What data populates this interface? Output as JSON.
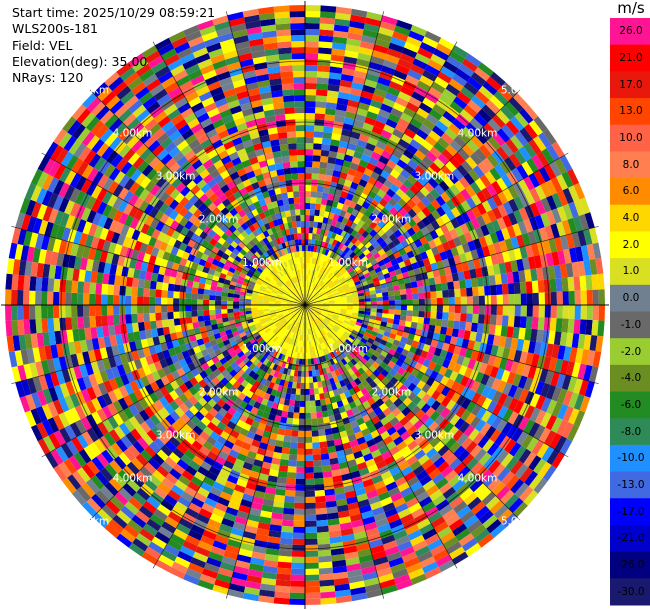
{
  "info": {
    "start_time": "Start time: 2025/10/29 08:59:21",
    "station": "WLS200s-181",
    "field": "Field: VEL",
    "elevation": "Elevation(deg): 35.00",
    "nrays": "NRays: 120"
  },
  "colorbar": {
    "unit": "m/s",
    "ticks": [
      "26.0",
      "21.0",
      "17.0",
      "13.0",
      "10.0",
      "8.0",
      "6.0",
      "4.0",
      "2.0",
      "1.0",
      "0.0",
      "-1.0",
      "-2.0",
      "-4.0",
      "-6.0",
      "-8.0",
      "-10.0",
      "-13.0",
      "-17.0",
      "-21.0",
      "-26.0",
      "-30.0"
    ],
    "colors": [
      "#ff1493",
      "#ff0000",
      "#e8190c",
      "#ff4500",
      "#ff6347",
      "#ff7f50",
      "#ff8c00",
      "#ffd700",
      "#ffff00",
      "#d9e021",
      "#708090",
      "#696969",
      "#9acd32",
      "#6b8e23",
      "#228b22",
      "#2e8b57",
      "#1e90ff",
      "#4169e1",
      "#0000ff",
      "#0000cd",
      "#000080",
      "#191970"
    ]
  },
  "range_labels": [
    "1.00km",
    "2.00km",
    "3.00km",
    "4.00km",
    "5.00km"
  ],
  "nrays": 120
}
